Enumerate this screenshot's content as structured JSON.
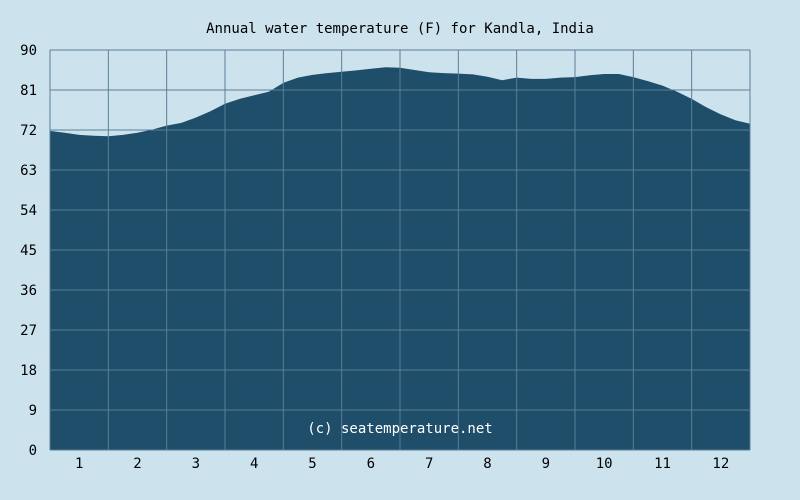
{
  "chart_data": {
    "type": "area",
    "title": "Annual water temperature (F) for Kandla, India",
    "xlabel": "",
    "ylabel": "",
    "x_tick_labels": [
      "1",
      "2",
      "3",
      "4",
      "5",
      "6",
      "7",
      "8",
      "9",
      "10",
      "11",
      "12"
    ],
    "y_tick_labels": [
      "0",
      "9",
      "18",
      "27",
      "36",
      "45",
      "54",
      "63",
      "72",
      "81",
      "90"
    ],
    "ylim": [
      0,
      90
    ],
    "xlim": [
      0.5,
      12.5
    ],
    "grid": true,
    "series": [
      {
        "x": [
          0.5,
          0.75,
          1.0,
          1.25,
          1.5,
          1.75,
          2.0,
          2.25,
          2.5,
          2.75,
          3.0,
          3.25,
          3.5,
          3.75,
          4.0,
          4.25,
          4.5,
          4.75,
          5.0,
          5.25,
          5.5,
          5.75,
          6.0,
          6.25,
          6.5,
          6.75,
          7.0,
          7.25,
          7.5,
          7.75,
          8.0,
          8.25,
          8.5,
          8.75,
          9.0,
          9.25,
          9.5,
          9.75,
          10.0,
          10.25,
          10.5,
          10.75,
          11.0,
          11.25,
          11.5,
          11.75,
          12.0,
          12.25,
          12.5
        ],
        "values": [
          71.8,
          71.4,
          70.9,
          70.7,
          70.6,
          70.9,
          71.4,
          72.1,
          73.0,
          73.6,
          74.8,
          76.2,
          77.9,
          79.0,
          79.8,
          80.6,
          82.6,
          83.8,
          84.4,
          84.8,
          85.1,
          85.4,
          85.8,
          86.1,
          86.0,
          85.5,
          85.0,
          84.8,
          84.7,
          84.5,
          84.0,
          83.2,
          83.8,
          83.5,
          83.5,
          83.8,
          83.9,
          84.3,
          84.6,
          84.6,
          83.9,
          83.0,
          82.0,
          80.6,
          79.0,
          77.1,
          75.5,
          74.2,
          73.4
        ]
      }
    ],
    "colors": {
      "background": "#cce3ee",
      "area": "#1f4e6b",
      "grid": "#5a7f96"
    }
  },
  "watermark": "(c) seatemperature.net"
}
